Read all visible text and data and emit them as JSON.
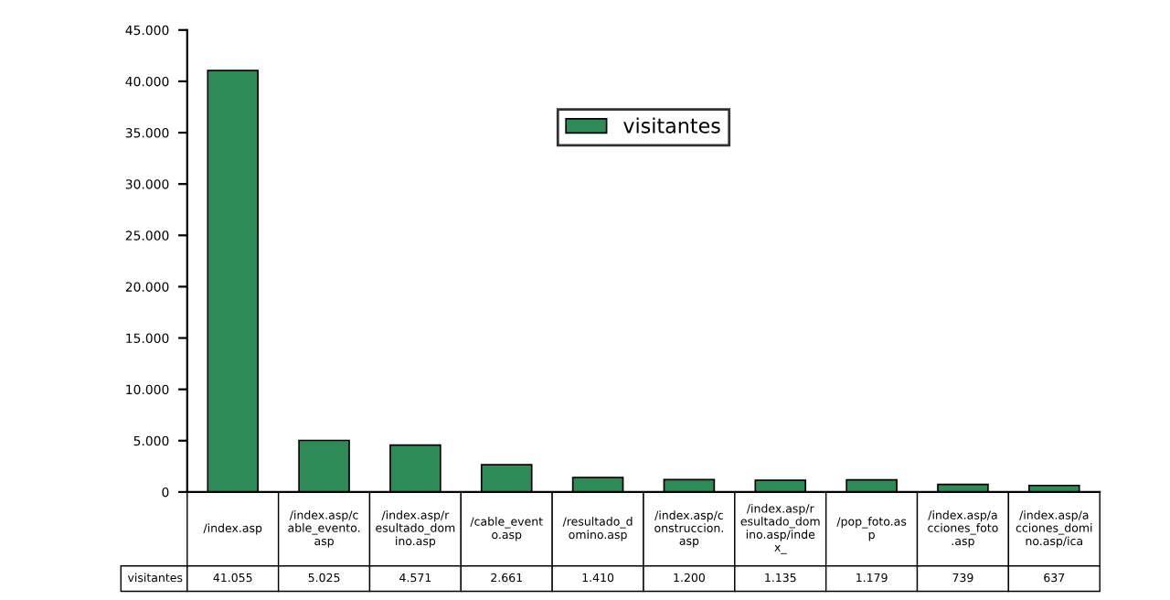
{
  "chart_data": {
    "type": "bar",
    "categories": [
      "/index.asp",
      "/index.asp/cable_evento.asp",
      "/index.asp/resultado_domino.asp",
      "/cable_evento.asp",
      "/resultado_domino.asp",
      "/index.asp/construccion.asp",
      "/index.asp/resultado_domino.asp/index_",
      "/pop_foto.asp",
      "/index.asp/acciones_foto.asp",
      "/index.asp/acciones_domino.asp/ica"
    ],
    "series": [
      {
        "name": "visitantes",
        "color": "#2e8b57",
        "values": [
          41055,
          5025,
          4571,
          2661,
          1410,
          1200,
          1135,
          1179,
          739,
          637
        ],
        "value_labels": [
          "41.055",
          "5.025",
          "4.571",
          "2.661",
          "1.410",
          "1.200",
          "1.135",
          "1.179",
          "739",
          "637"
        ]
      }
    ],
    "ylim": [
      0,
      45000
    ],
    "yticks": [
      0,
      {
        "value": 5000,
        "label": "5.000"
      },
      {
        "value": 10000,
        "label": "10.000"
      },
      {
        "value": 15000,
        "label": "15.000"
      },
      {
        "value": 20000,
        "label": "20.000"
      },
      {
        "value": 25000,
        "label": "25.000"
      },
      {
        "value": 30000,
        "label": "30.000"
      },
      {
        "value": 35000,
        "label": "35.000"
      },
      {
        "value": 40000,
        "label": "40.000"
      },
      {
        "value": 45000,
        "label": "45.000"
      }
    ],
    "grid": false,
    "legend": "top"
  }
}
